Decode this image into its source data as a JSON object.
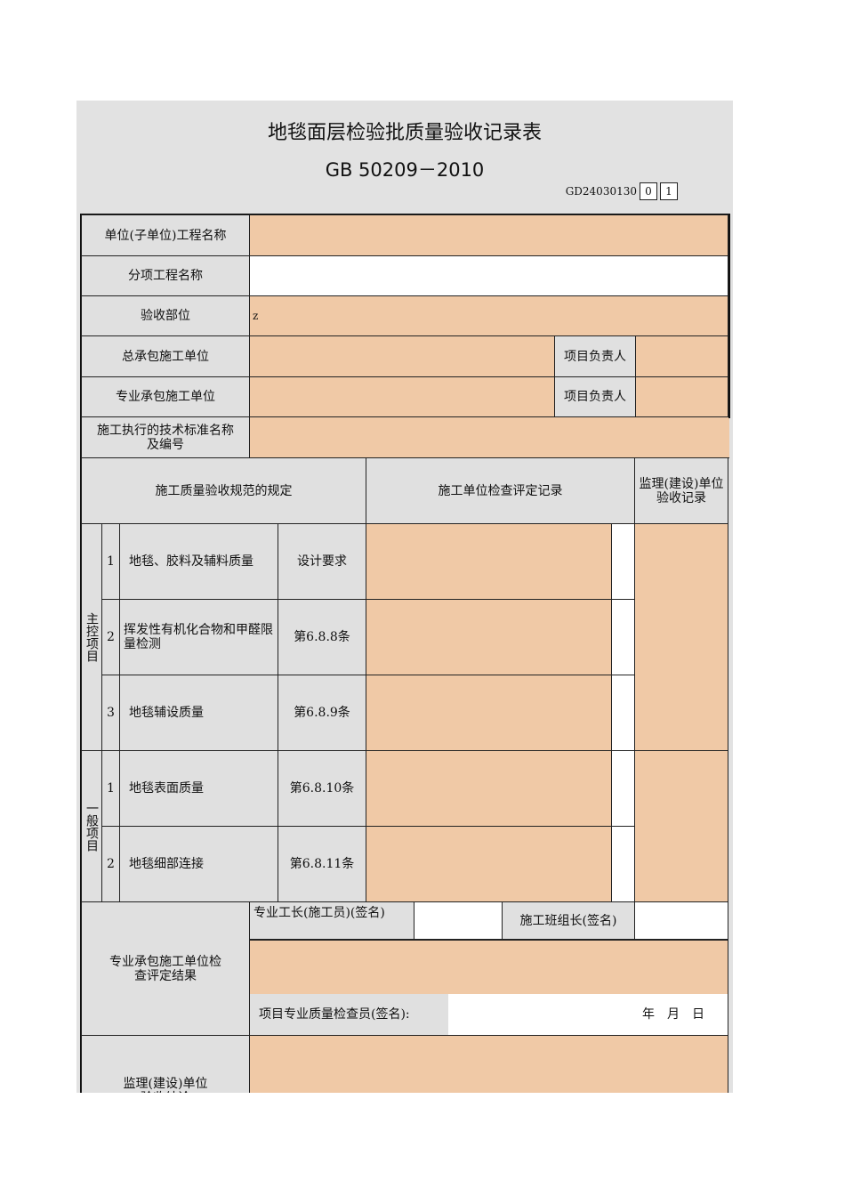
{
  "header": {
    "title": "地毯面层检验批质量验收记录表",
    "standard": "GB 50209－2010",
    "code": "GD24030130",
    "code_boxes": [
      "0",
      "1"
    ]
  },
  "info": {
    "unit_project_label": "单位(子单位)工程名称",
    "sub_project_label": "分项工程名称",
    "location_label": "验收部位",
    "location_value": "z",
    "general_contractor_label": "总承包施工单位",
    "project_manager_label": "项目负责人",
    "specialty_contractor_label": "专业承包施工单位",
    "project_manager_label_2": "项目负责人",
    "standard_label": "施工执行的技术标准名称及编号"
  },
  "sections": {
    "spec": "施工质量验收规范的规定",
    "record": "施工单位检查评定记录",
    "supervisor": "监理(建设)单位验收记录"
  },
  "main_items": {
    "label": "主控项目",
    "rows": [
      {
        "no": "1",
        "name": "地毯、胶料及辅料质量",
        "clause": "设计要求"
      },
      {
        "no": "2",
        "name": "挥发性有机化合物和甲醛限量检测",
        "clause": "第6.8.8条"
      },
      {
        "no": "3",
        "name": "地毯辅设质量",
        "clause": "第6.8.9条"
      }
    ]
  },
  "general_items": {
    "label": "一般项目",
    "rows": [
      {
        "no": "1",
        "name": "地毯表面质量",
        "clause": "第6.8.10条"
      },
      {
        "no": "2",
        "name": "地毯细部连接",
        "clause": "第6.8.11条"
      }
    ]
  },
  "footer": {
    "contractor_result_label": "专业承包施工单位检查评定结果",
    "foreman_label": "专业工长(施工员)(签名)",
    "team_leader_label": "施工班组长(签名)",
    "inspector_label": "项目专业质量检查员(签名):",
    "date_label": "年　月　日",
    "supervisor_conclusion_label": "监理(建设)单位验收结论"
  }
}
